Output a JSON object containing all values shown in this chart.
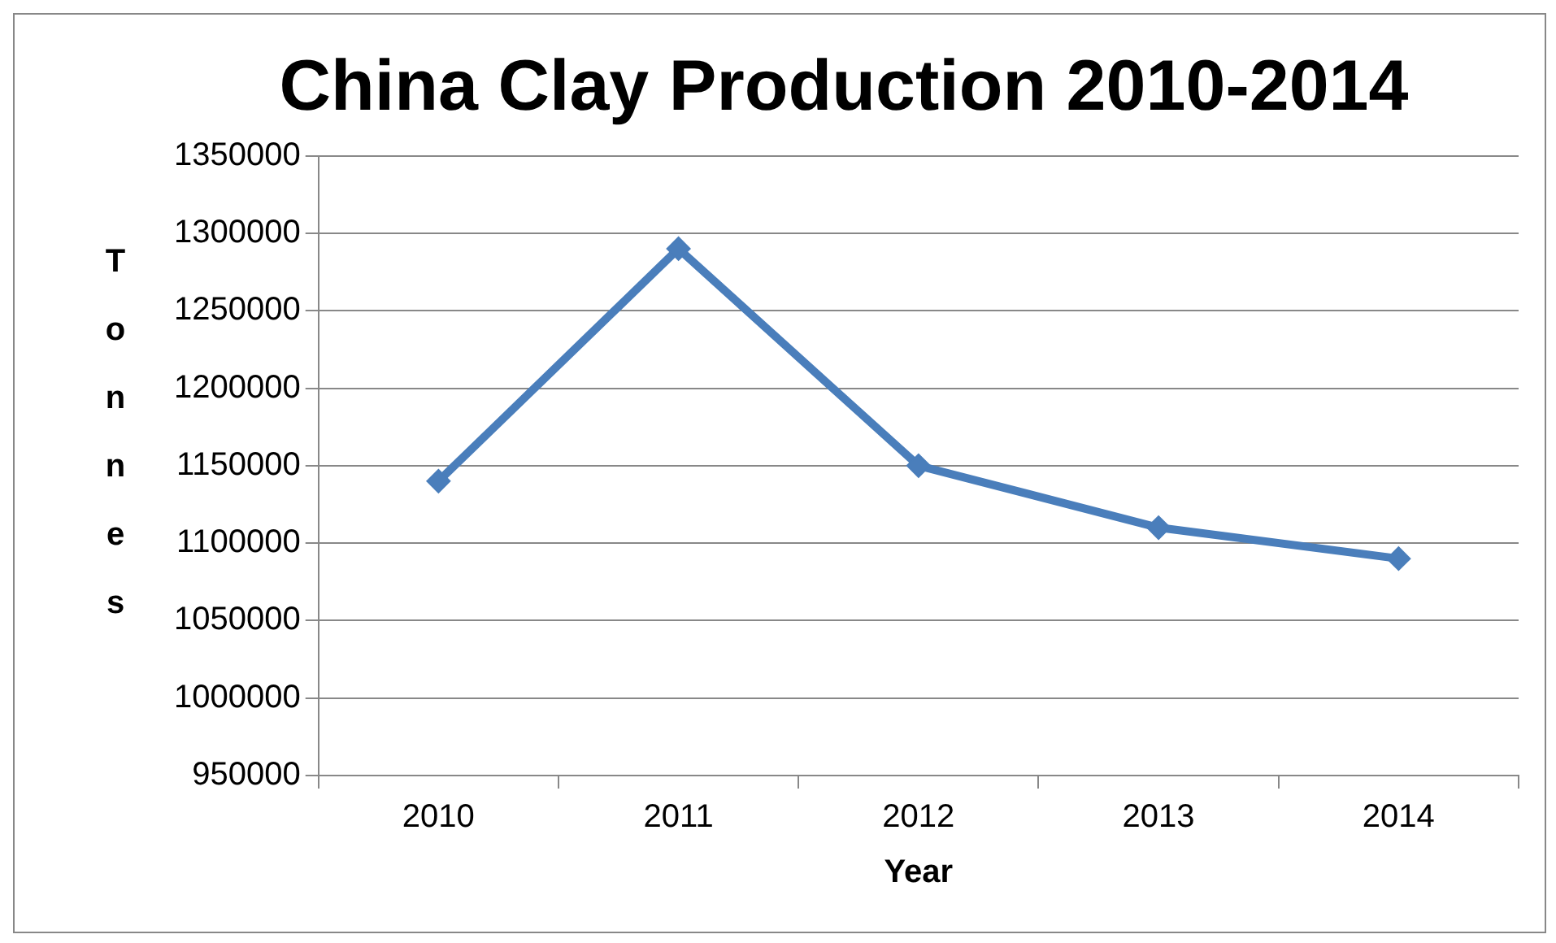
{
  "chart_data": {
    "type": "line",
    "title": "China Clay Production 2010-2014",
    "xlabel": "Year",
    "ylabel": "Tonnes",
    "categories": [
      "2010",
      "2011",
      "2012",
      "2013",
      "2014"
    ],
    "series": [
      {
        "color": "#4a7ebb",
        "values": [
          1140000,
          1290000,
          1150000,
          1110000,
          1090000
        ]
      }
    ],
    "ylim": [
      950000,
      1350000
    ],
    "yticks": [
      950000,
      1000000,
      1050000,
      1100000,
      1150000,
      1200000,
      1250000,
      1300000,
      1350000
    ],
    "grid": "y",
    "legend": false,
    "marker": "diamond",
    "line_style": "solid"
  }
}
